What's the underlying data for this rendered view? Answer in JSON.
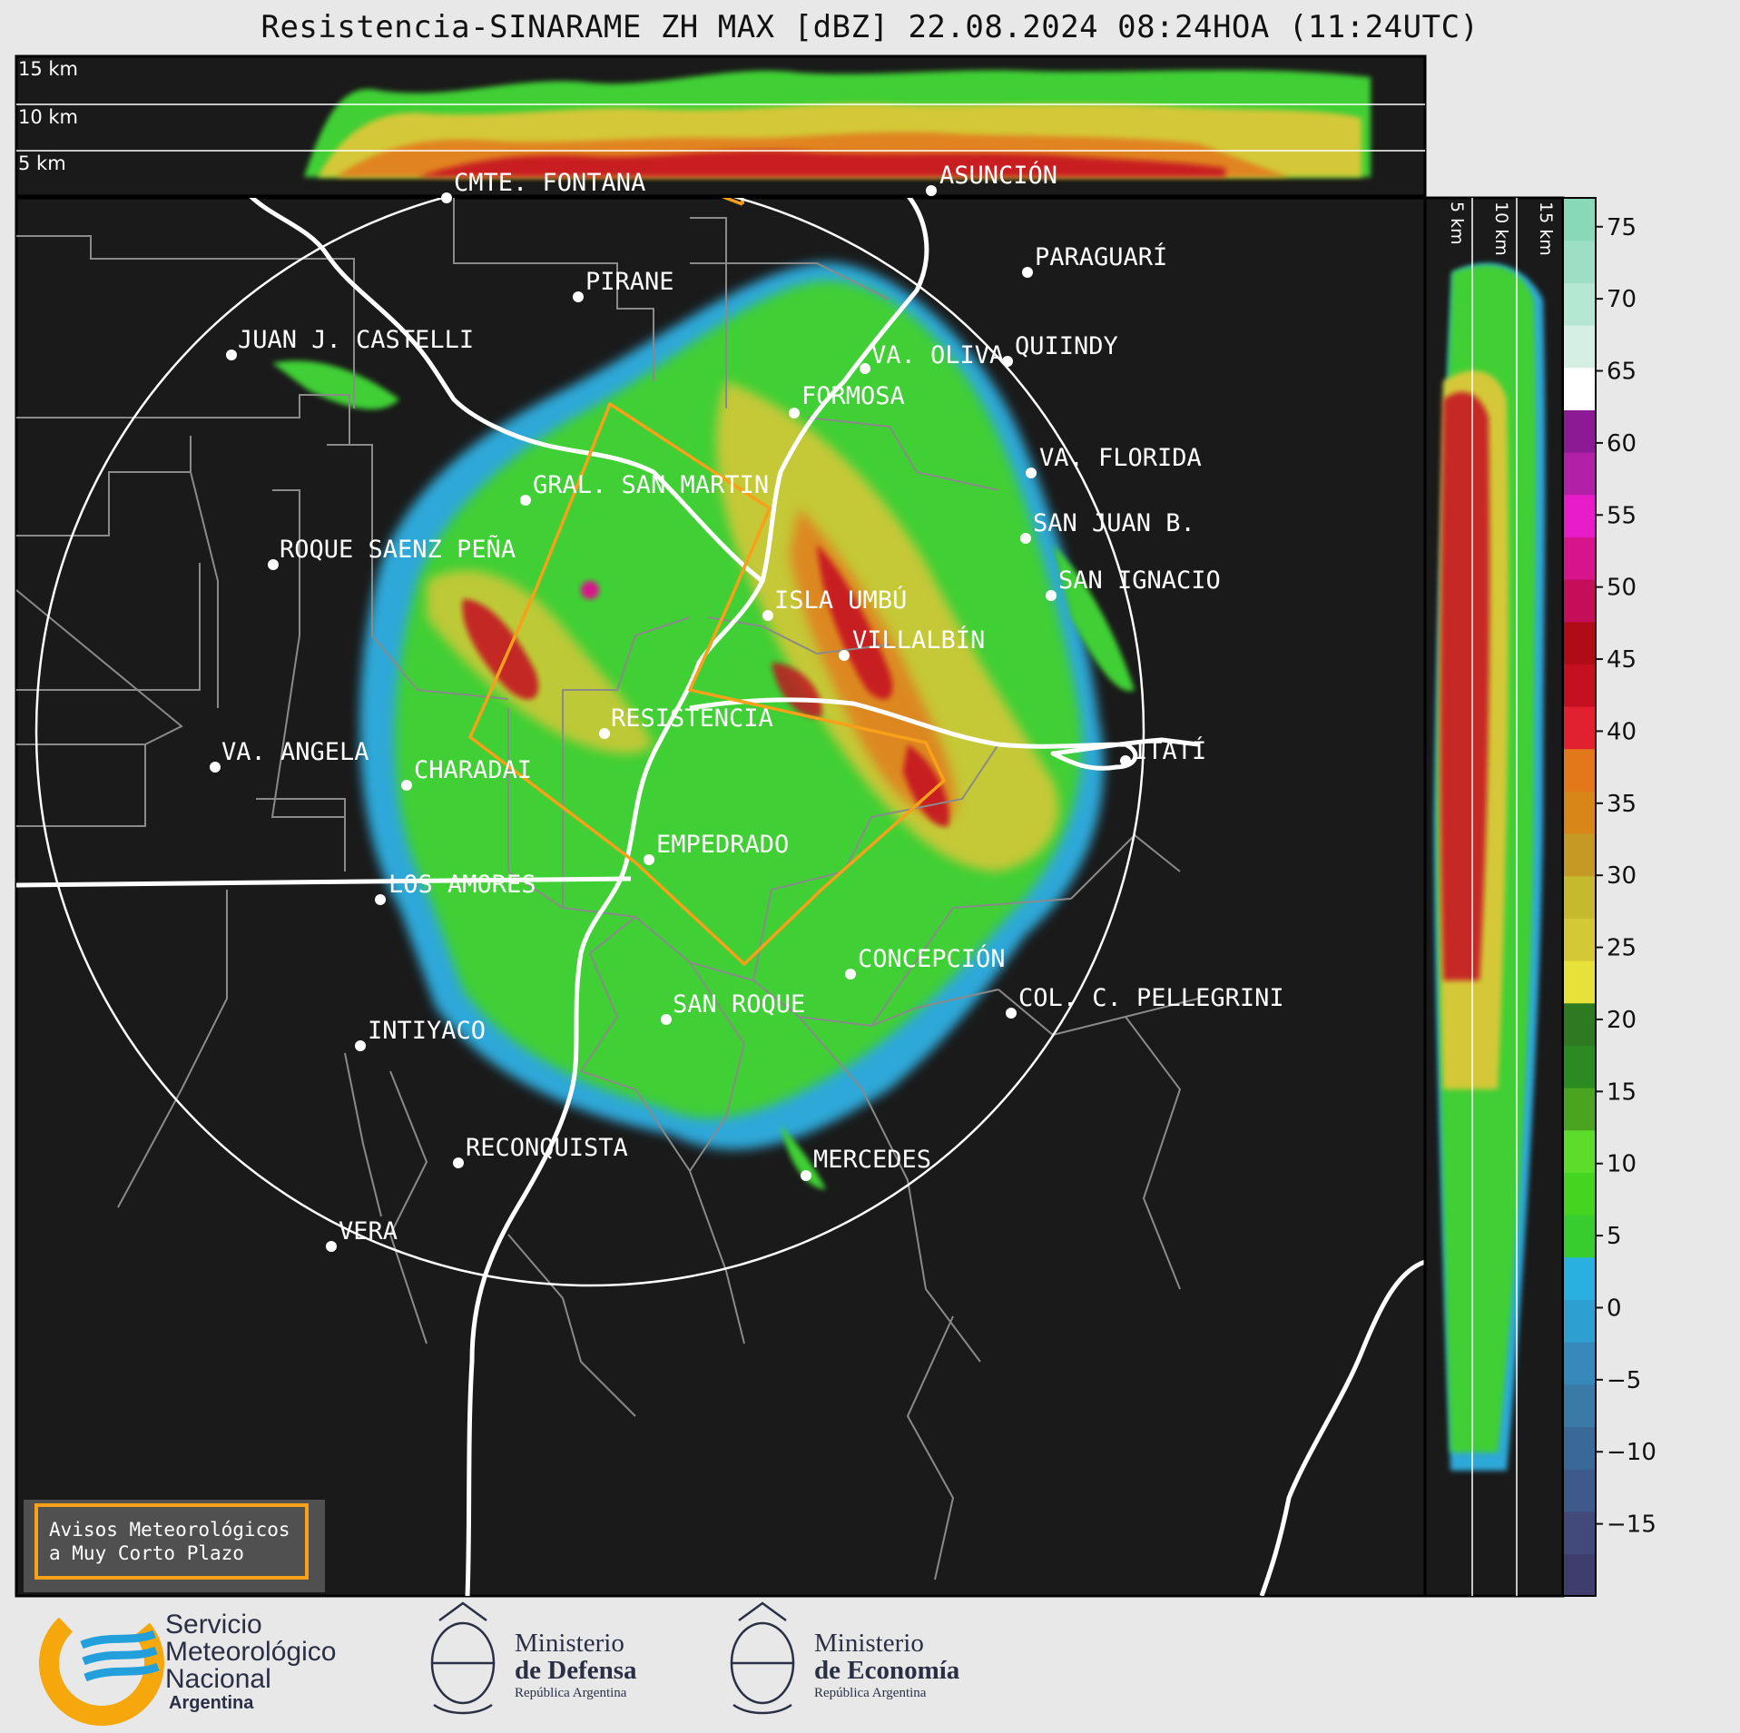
{
  "title": "Resistencia-SINARAME ZH MAX [dBZ] 22.08.2024 08:24HOA (11:24UTC)",
  "top_profile": {
    "height_labels": [
      "15 km",
      "10 km",
      "5 km"
    ]
  },
  "side_profile": {
    "height_labels": [
      "5 km",
      "10 km",
      "15 km"
    ]
  },
  "colorbar": {
    "unit": "dBZ",
    "ticks": [
      "75",
      "70",
      "65",
      "60",
      "55",
      "50",
      "45",
      "40",
      "35",
      "30",
      "25",
      "20",
      "15",
      "10",
      "5",
      "0",
      "−5",
      "−10",
      "−15"
    ],
    "range": [
      -20,
      77
    ],
    "colors": [
      "#3e3d6b",
      "#414a7b",
      "#3e5a8a",
      "#3a6997",
      "#3a7aa7",
      "#3789ba",
      "#2d9fd0",
      "#2ab0e0",
      "#37cd2e",
      "#45d41f",
      "#5cdc2b",
      "#4ba41f",
      "#2b8a21",
      "#2d7a20",
      "#e6e23a",
      "#d4c837",
      "#c6b92e",
      "#c49a24",
      "#d88617",
      "#e3781a",
      "#e12130",
      "#c41020",
      "#b00c18",
      "#c50e5a",
      "#d8148c",
      "#e81cc8",
      "#b320a8",
      "#8c1a94",
      "#ffffff",
      "#d6efe5",
      "#b6e7d3",
      "#9ddfc5",
      "#89d8b7"
    ]
  },
  "cities": [
    {
      "name": "CMTE. FONTANA",
      "dot": [
        492,
        218
      ],
      "label": [
        500,
        210
      ]
    },
    {
      "name": "ASUNCIÓN",
      "dot": [
        1026,
        210
      ],
      "label": [
        1035,
        202
      ]
    },
    {
      "name": "PARAGUARÍ",
      "dot": [
        1132,
        300
      ],
      "label": [
        1140,
        292
      ]
    },
    {
      "name": "PIRANE",
      "dot": [
        637,
        327
      ],
      "label": [
        645,
        319
      ]
    },
    {
      "name": "JUAN J. CASTELLI",
      "dot": [
        255,
        391
      ],
      "label": [
        262,
        383
      ]
    },
    {
      "name": "VA. OLIVA",
      "dot": [
        953,
        406
      ],
      "label": [
        960,
        400
      ]
    },
    {
      "name": "QUIINDY",
      "dot": [
        1110,
        398
      ],
      "label": [
        1118,
        390
      ]
    },
    {
      "name": "FORMOSA",
      "dot": [
        875,
        455
      ],
      "label": [
        883,
        445
      ]
    },
    {
      "name": "VA. FLORIDA",
      "dot": [
        1136,
        521
      ],
      "label": [
        1145,
        513
      ]
    },
    {
      "name": "GRAL. SAN MARTIN",
      "dot": [
        579,
        551
      ],
      "label": [
        587,
        543
      ]
    },
    {
      "name": "SAN JUAN B.",
      "dot": [
        1130,
        593
      ],
      "label": [
        1138,
        585
      ]
    },
    {
      "name": "ROQUE SAENZ PEÑA",
      "dot": [
        301,
        622
      ],
      "label": [
        308,
        614
      ]
    },
    {
      "name": "SAN IGNACIO",
      "dot": [
        1158,
        656
      ],
      "label": [
        1166,
        648
      ]
    },
    {
      "name": "ISLA UMBÚ",
      "dot": [
        846,
        678
      ],
      "label": [
        853,
        670
      ]
    },
    {
      "name": "VILLALBÍN",
      "dot": [
        930,
        722
      ],
      "label": [
        939,
        714
      ]
    },
    {
      "name": "RESISTENCIA",
      "dot": [
        666,
        808
      ],
      "label": [
        673,
        800
      ]
    },
    {
      "name": "ITATÍ",
      "dot": [
        1240,
        838
      ],
      "label": [
        1248,
        836
      ]
    },
    {
      "name": "VA. ANGELA",
      "dot": [
        237,
        845
      ],
      "label": [
        244,
        837
      ]
    },
    {
      "name": "CHARADAI",
      "dot": [
        448,
        865
      ],
      "label": [
        456,
        857
      ]
    },
    {
      "name": "EMPEDRADO",
      "dot": [
        715,
        947
      ],
      "label": [
        723,
        939
      ]
    },
    {
      "name": "LOS AMORES",
      "dot": [
        419,
        991
      ],
      "label": [
        428,
        983
      ]
    },
    {
      "name": "CONCEPCIÓN",
      "dot": [
        937,
        1073
      ],
      "label": [
        945,
        1065
      ]
    },
    {
      "name": "COL. C. PELLEGRINI",
      "dot": [
        1114,
        1116
      ],
      "label": [
        1122,
        1108
      ]
    },
    {
      "name": "SAN ROQUE",
      "dot": [
        734,
        1123
      ],
      "label": [
        741,
        1115
      ]
    },
    {
      "name": "INTIYACO",
      "dot": [
        397,
        1152
      ],
      "label": [
        405,
        1144
      ]
    },
    {
      "name": "RECONQUISTA",
      "dot": [
        505,
        1281
      ],
      "label": [
        513,
        1273
      ]
    },
    {
      "name": "MERCEDES",
      "dot": [
        888,
        1295
      ],
      "label": [
        896,
        1286
      ]
    },
    {
      "name": "VERA",
      "dot": [
        365,
        1373
      ],
      "label": [
        373,
        1365
      ]
    }
  ],
  "warning_box": {
    "line1": "Avisos Meteorológicos",
    "line2": "a Muy Corto Plazo"
  },
  "logos": {
    "smn": {
      "line1": "Servicio",
      "line2": "Meteorológico",
      "line3": "Nacional",
      "line4": "Argentina"
    },
    "defensa": {
      "line1": "Ministerio",
      "line2": "de Defensa",
      "line3": "República Argentina"
    },
    "economia": {
      "line1": "Ministerio",
      "line2": "de Economía",
      "line3": "República Argentina"
    }
  },
  "palette": {
    "border_white": "#ffffff",
    "province_gray": "#8a8a8a",
    "warning_orange": "#f7a01a",
    "background": "#1a1a1a"
  }
}
